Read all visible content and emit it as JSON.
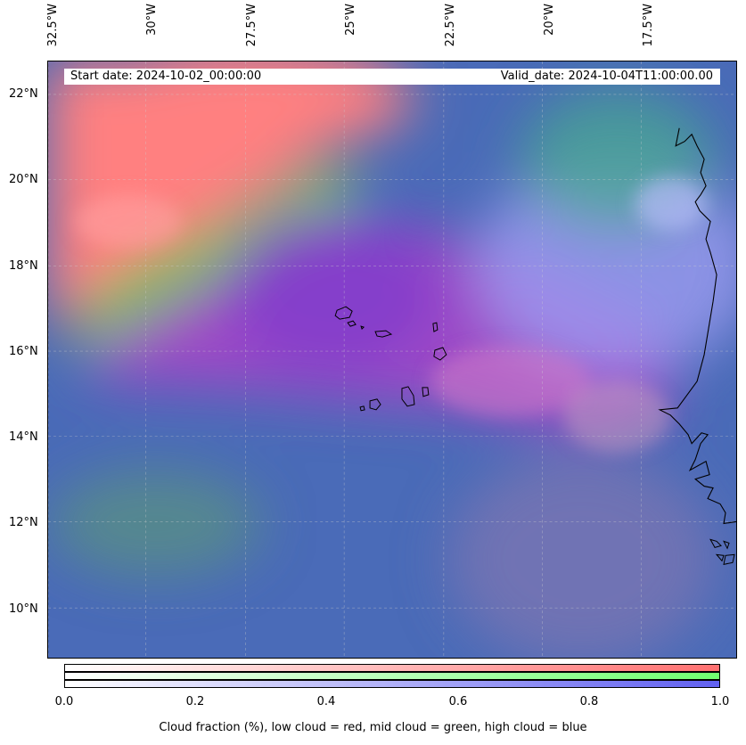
{
  "map": {
    "lon_labels": [
      "32.5°W",
      "30°W",
      "27.5°W",
      "25°W",
      "22.5°W",
      "20°W",
      "17.5°W"
    ],
    "lat_labels": [
      "22°N",
      "20°N",
      "18°N",
      "16°N",
      "14°N",
      "12°N",
      "10°N"
    ],
    "start_date": "Start date: 2024-10-02_00:00:00",
    "valid_date": "Valid_date: 2024-10-04T11:00:00.00",
    "colors": {
      "low_cloud": "#ff8080",
      "mid_cloud": "#80ff80",
      "high_cloud": "#8080ff",
      "base": "#4a6bb8",
      "coast": "#000000"
    }
  },
  "colorbar": {
    "ticks": [
      "0.0",
      "0.2",
      "0.4",
      "0.6",
      "0.8",
      "1.0"
    ],
    "caption": "Cloud fraction (%), low cloud = red, mid cloud = green, high cloud = blue"
  }
}
